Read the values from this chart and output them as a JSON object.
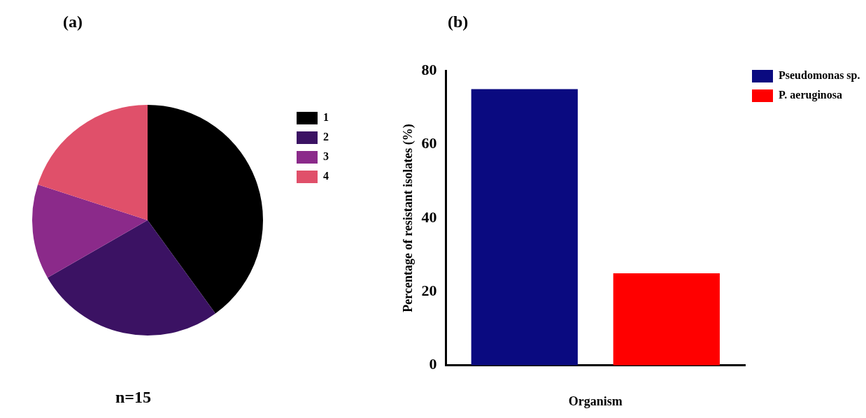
{
  "chart_data": [
    {
      "type": "pie",
      "title": "(a)",
      "categories": [
        "1",
        "2",
        "3",
        "4"
      ],
      "values": [
        40,
        26.7,
        13.3,
        20
      ],
      "colors": [
        "#000000",
        "#3b1263",
        "#8b2a8a",
        "#e0506a"
      ],
      "legend": "right",
      "annotations": [
        "n=15"
      ]
    },
    {
      "type": "bar",
      "title": "(b)",
      "categories": [
        null
      ],
      "xlabel": "Organism",
      "ylabel": "Percentage of resistant isolates (%)",
      "series": [
        {
          "name": "Pseudomonas sp.",
          "color": "#0a0a80",
          "values": [
            75
          ]
        },
        {
          "name": "P. aeruginosa",
          "color": "#ff0000",
          "values": [
            25
          ]
        }
      ],
      "ylim": [
        0,
        80
      ],
      "yticks": [
        0,
        20,
        40,
        60,
        80
      ],
      "grid": false,
      "legend": "right"
    }
  ]
}
